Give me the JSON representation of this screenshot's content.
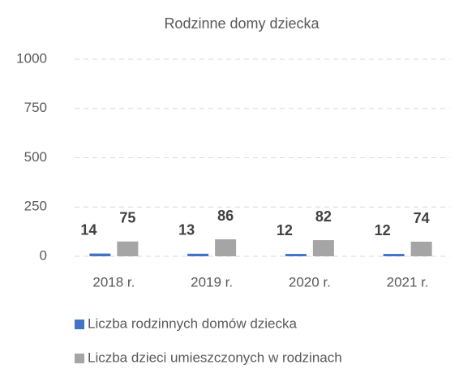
{
  "chart_data": {
    "type": "bar",
    "title": "Rodzinne domy dziecka",
    "categories": [
      "2018 r.",
      "2019 r.",
      "2020 r.",
      "2021 r."
    ],
    "series": [
      {
        "name": "Liczba rodzinnych domów dziecka",
        "color": "#4472c4",
        "values": [
          14,
          13,
          12,
          12
        ]
      },
      {
        "name": "Liczba dzieci umieszczonych w rodzinach",
        "color": "#a5a5a5",
        "values": [
          75,
          86,
          82,
          74
        ]
      }
    ],
    "ylim": [
      0,
      1000
    ],
    "yticks": [
      0,
      250,
      500,
      750,
      1000
    ],
    "grid": true,
    "legend": "bottom"
  }
}
